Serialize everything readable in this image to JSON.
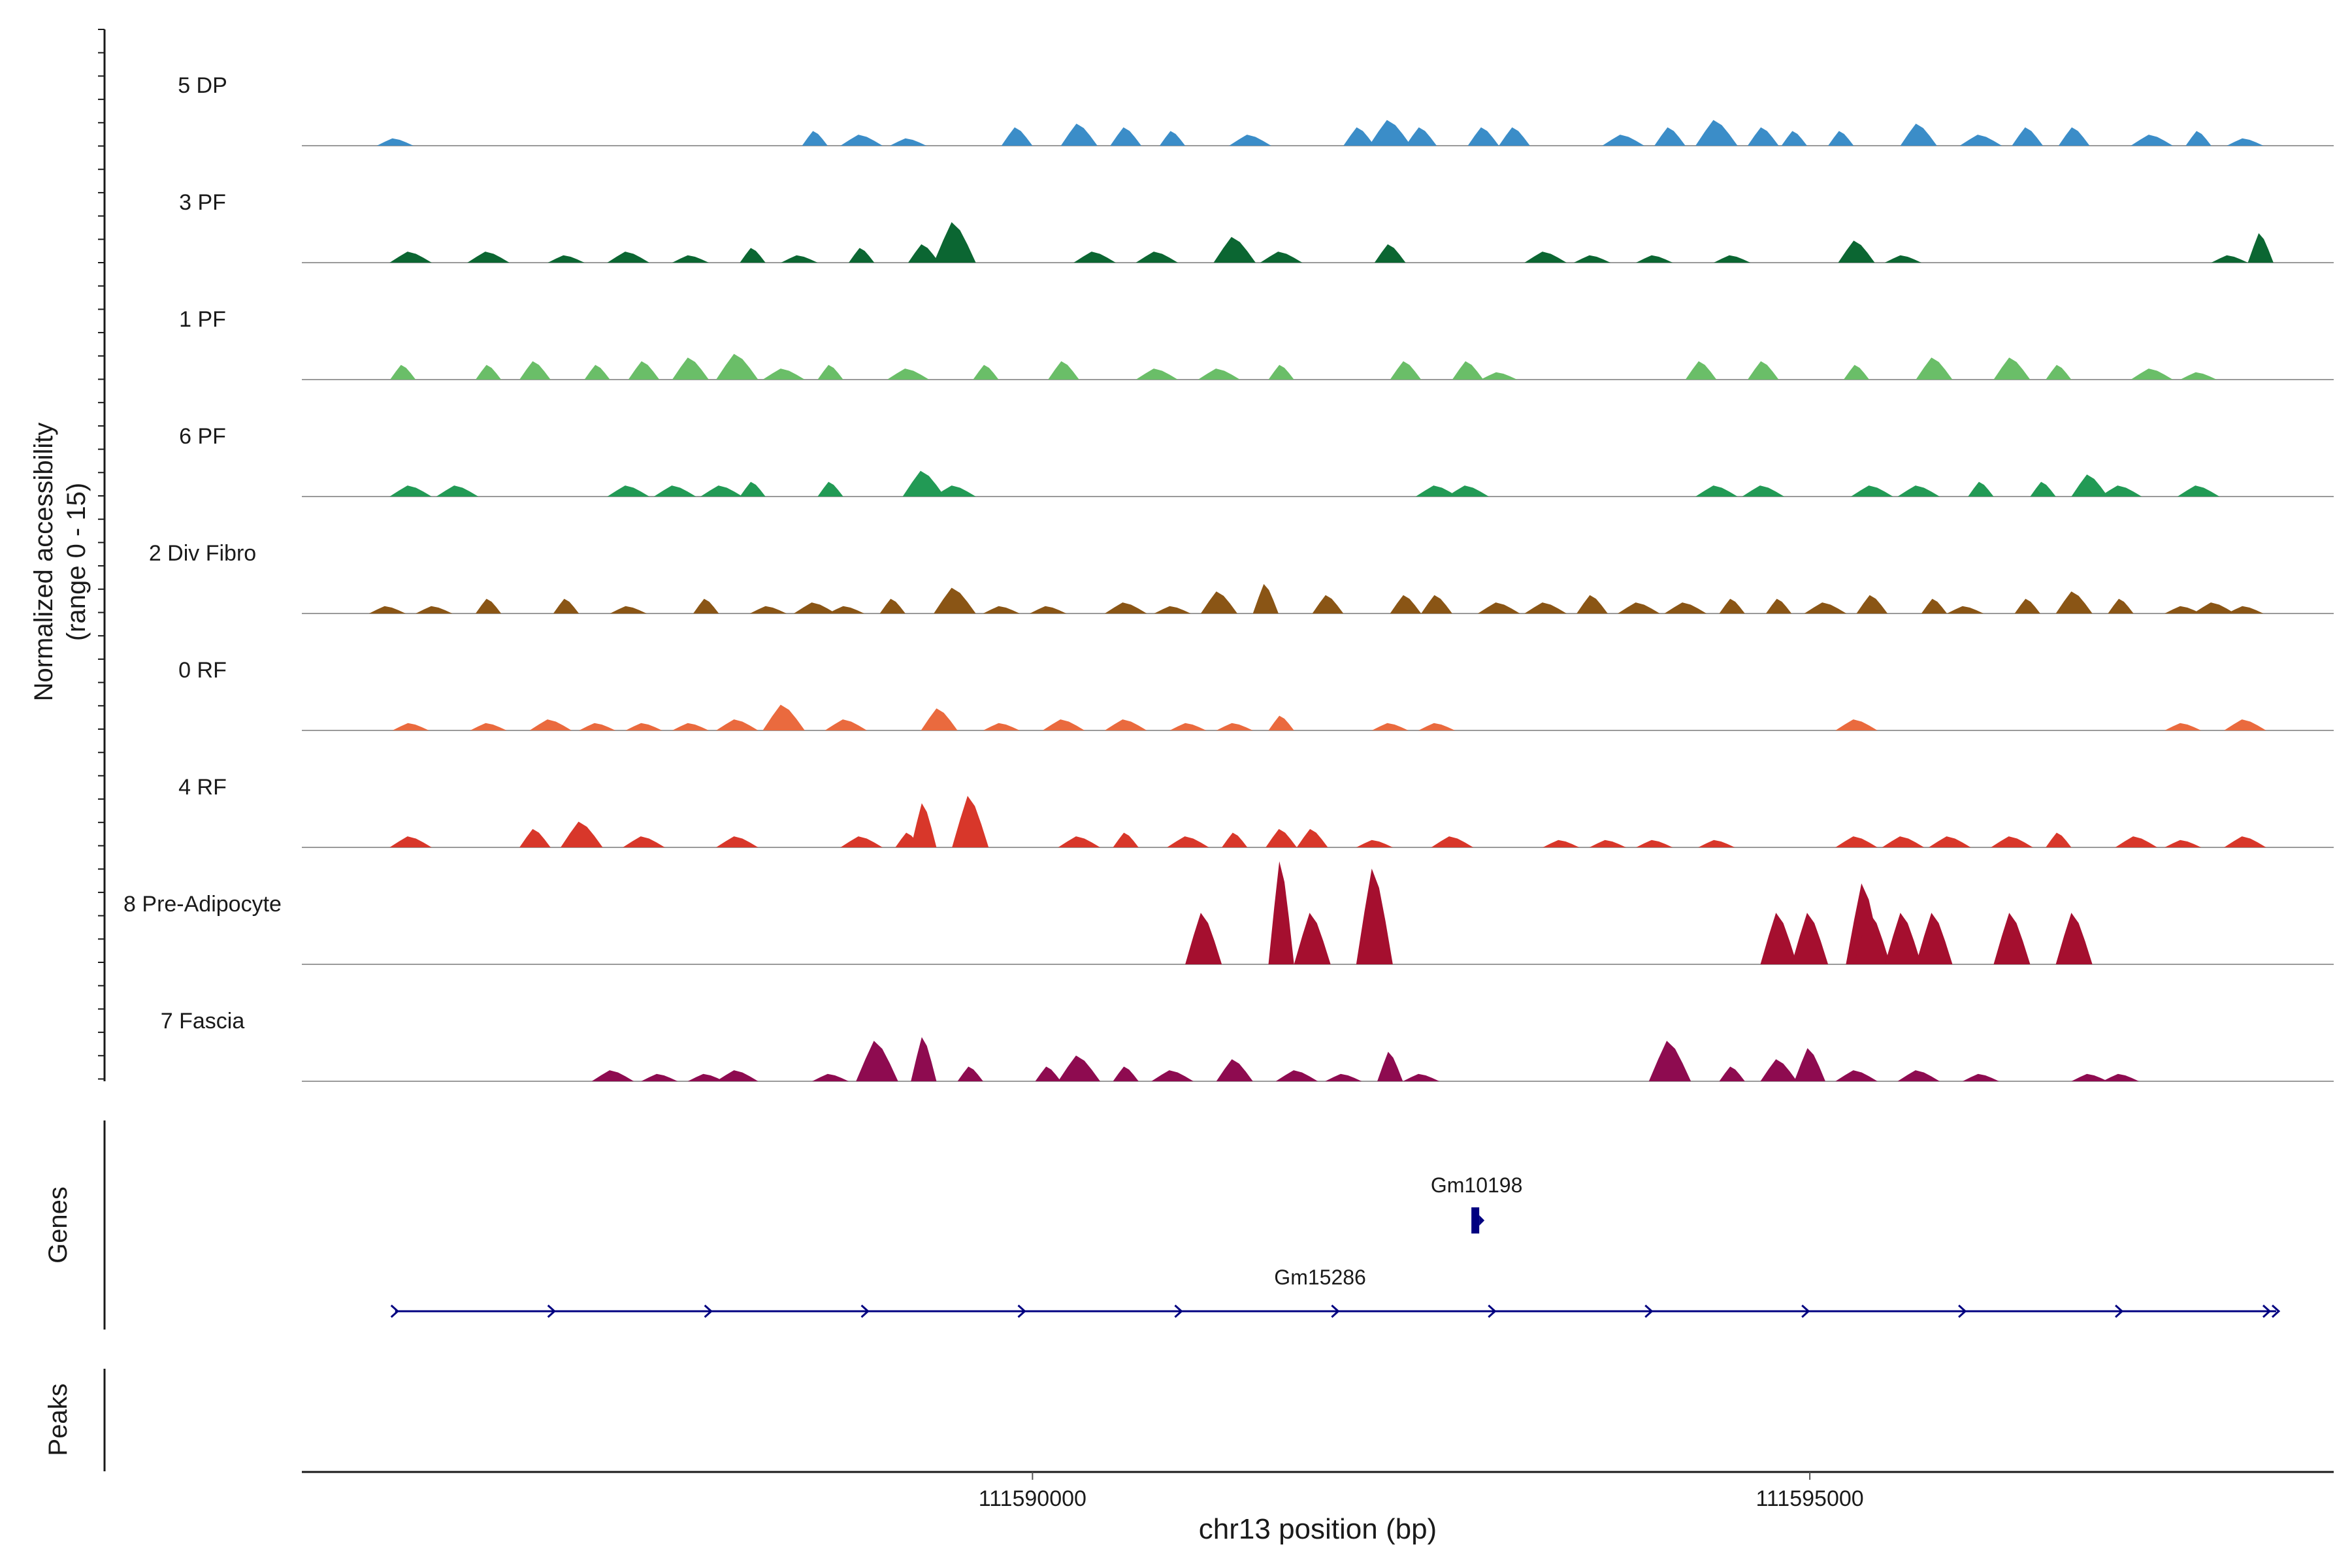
{
  "chart_data": {
    "type": "area",
    "title": "",
    "y_axis_label_line1": "Normalized accessibility",
    "y_axis_label_line2": "(range 0 - 15)",
    "xlabel": "chr13 position (bp)",
    "x_ticks": [
      111590000,
      111595000
    ],
    "x_tick_labels": [
      "111590000",
      "111595000"
    ],
    "xlim": [
      111585300,
      111598370
    ],
    "ylim": [
      0,
      15
    ],
    "series": [
      {
        "name": "5 DP",
        "color": "#3B8DC8",
        "points": [
          [
            111585900,
            1
          ],
          [
            111588600,
            2
          ],
          [
            111588900,
            1.5
          ],
          [
            111589200,
            1
          ],
          [
            111589900,
            2.5
          ],
          [
            111590300,
            3
          ],
          [
            111590600,
            2.5
          ],
          [
            111590900,
            2
          ],
          [
            111591400,
            1.5
          ],
          [
            111592100,
            2.5
          ],
          [
            111592300,
            3.5
          ],
          [
            111592500,
            2.5
          ],
          [
            111592900,
            2.5
          ],
          [
            111593100,
            2.5
          ],
          [
            111593800,
            1.5
          ],
          [
            111594100,
            2.5
          ],
          [
            111594400,
            3.5
          ],
          [
            111594700,
            2.5
          ],
          [
            111594900,
            2
          ],
          [
            111595200,
            2
          ],
          [
            111595700,
            3
          ],
          [
            111596100,
            1.5
          ],
          [
            111596400,
            2.5
          ],
          [
            111596700,
            2.5
          ],
          [
            111597200,
            1.5
          ],
          [
            111597500,
            2
          ],
          [
            111597800,
            1
          ]
        ]
      },
      {
        "name": "3 PF",
        "color": "#0B6632",
        "points": [
          [
            111586000,
            1.5
          ],
          [
            111586500,
            1.5
          ],
          [
            111587000,
            1
          ],
          [
            111587400,
            1.5
          ],
          [
            111587800,
            1
          ],
          [
            111588200,
            2
          ],
          [
            111588500,
            1
          ],
          [
            111588900,
            2
          ],
          [
            111589300,
            2.5
          ],
          [
            111589500,
            5.5
          ],
          [
            111590400,
            1.5
          ],
          [
            111590800,
            1.5
          ],
          [
            111591300,
            3.5
          ],
          [
            111591600,
            1.5
          ],
          [
            111592300,
            2.5
          ],
          [
            111593300,
            1.5
          ],
          [
            111593600,
            1
          ],
          [
            111594000,
            1
          ],
          [
            111594500,
            1
          ],
          [
            111595300,
            3
          ],
          [
            111595600,
            1
          ],
          [
            111597700,
            1
          ],
          [
            111597900,
            4
          ]
        ]
      },
      {
        "name": "1 PF",
        "color": "#6ABE68",
        "points": [
          [
            111585950,
            2
          ],
          [
            111586500,
            2
          ],
          [
            111586800,
            2.5
          ],
          [
            111587200,
            2
          ],
          [
            111587500,
            2.5
          ],
          [
            111587800,
            3
          ],
          [
            111588100,
            3.5
          ],
          [
            111588400,
            1.5
          ],
          [
            111588700,
            2
          ],
          [
            111589200,
            1.5
          ],
          [
            111589700,
            2
          ],
          [
            111590200,
            2.5
          ],
          [
            111590800,
            1.5
          ],
          [
            111591200,
            1.5
          ],
          [
            111591600,
            2
          ],
          [
            111592400,
            2.5
          ],
          [
            111592800,
            2.5
          ],
          [
            111593000,
            1
          ],
          [
            111594300,
            2.5
          ],
          [
            111594700,
            2.5
          ],
          [
            111595300,
            2
          ],
          [
            111595800,
            3
          ],
          [
            111596300,
            3
          ],
          [
            111596600,
            2
          ],
          [
            111597200,
            1.5
          ],
          [
            111597500,
            1
          ]
        ]
      },
      {
        "name": "6 PF",
        "color": "#229A55",
        "points": [
          [
            111586000,
            1.5
          ],
          [
            111586300,
            1.5
          ],
          [
            111587400,
            1.5
          ],
          [
            111587700,
            1.5
          ],
          [
            111588000,
            1.5
          ],
          [
            111588200,
            2
          ],
          [
            111588700,
            2
          ],
          [
            111589300,
            3.5
          ],
          [
            111589500,
            1.5
          ],
          [
            111592600,
            1.5
          ],
          [
            111592800,
            1.5
          ],
          [
            111594400,
            1.5
          ],
          [
            111594700,
            1.5
          ],
          [
            111595400,
            1.5
          ],
          [
            111595700,
            1.5
          ],
          [
            111596100,
            2
          ],
          [
            111596500,
            2
          ],
          [
            111596800,
            3
          ],
          [
            111597000,
            1.5
          ],
          [
            111597500,
            1.5
          ]
        ]
      },
      {
        "name": "2 Div Fibro",
        "color": "#8A5515",
        "points": [
          [
            111585850,
            1
          ],
          [
            111586150,
            1
          ],
          [
            111586500,
            2
          ],
          [
            111587000,
            2
          ],
          [
            111587400,
            1
          ],
          [
            111587900,
            2
          ],
          [
            111588300,
            1
          ],
          [
            111588600,
            1.5
          ],
          [
            111588800,
            1
          ],
          [
            111589100,
            2
          ],
          [
            111589500,
            3.5
          ],
          [
            111589800,
            1
          ],
          [
            111590100,
            1
          ],
          [
            111590600,
            1.5
          ],
          [
            111590900,
            1
          ],
          [
            111591200,
            3
          ],
          [
            111591500,
            4
          ],
          [
            111591900,
            2.5
          ],
          [
            111592400,
            2.5
          ],
          [
            111592600,
            2.5
          ],
          [
            111593000,
            1.5
          ],
          [
            111593300,
            1.5
          ],
          [
            111593600,
            2.5
          ],
          [
            111593900,
            1.5
          ],
          [
            111594200,
            1.5
          ],
          [
            111594500,
            2
          ],
          [
            111594800,
            2
          ],
          [
            111595100,
            1.5
          ],
          [
            111595400,
            2.5
          ],
          [
            111595800,
            2
          ],
          [
            111596000,
            1
          ],
          [
            111596400,
            2
          ],
          [
            111596700,
            3
          ],
          [
            111597000,
            2
          ],
          [
            111597400,
            1
          ],
          [
            111597600,
            1.5
          ],
          [
            111597800,
            1
          ]
        ]
      },
      {
        "name": "0 RF",
        "color": "#EA6A3E",
        "points": [
          [
            111586000,
            1
          ],
          [
            111586500,
            1
          ],
          [
            111586900,
            1.5
          ],
          [
            111587200,
            1
          ],
          [
            111587500,
            1
          ],
          [
            111587800,
            1
          ],
          [
            111588100,
            1.5
          ],
          [
            111588400,
            3.5
          ],
          [
            111588800,
            1.5
          ],
          [
            111589400,
            3
          ],
          [
            111589800,
            1
          ],
          [
            111590200,
            1.5
          ],
          [
            111590600,
            1.5
          ],
          [
            111591000,
            1
          ],
          [
            111591300,
            1
          ],
          [
            111591600,
            2
          ],
          [
            111592300,
            1
          ],
          [
            111592600,
            1
          ],
          [
            111595300,
            1.5
          ],
          [
            111597400,
            1
          ],
          [
            111597800,
            1.5
          ]
        ]
      },
      {
        "name": "4 RF",
        "color": "#D8372A",
        "points": [
          [
            111586000,
            1.5
          ],
          [
            111586800,
            2.5
          ],
          [
            111587100,
            3.5
          ],
          [
            111587500,
            1.5
          ],
          [
            111588100,
            1.5
          ],
          [
            111588900,
            1.5
          ],
          [
            111589200,
            2
          ],
          [
            111589300,
            6
          ],
          [
            111589600,
            7
          ],
          [
            111590300,
            1.5
          ],
          [
            111590600,
            2
          ],
          [
            111591000,
            1.5
          ],
          [
            111591300,
            2
          ],
          [
            111591600,
            2.5
          ],
          [
            111591800,
            2.5
          ],
          [
            111592200,
            1
          ],
          [
            111592700,
            1.5
          ],
          [
            111593400,
            1
          ],
          [
            111593700,
            1
          ],
          [
            111594000,
            1
          ],
          [
            111594400,
            1
          ],
          [
            111595300,
            1.5
          ],
          [
            111595600,
            1.5
          ],
          [
            111595900,
            1.5
          ],
          [
            111596300,
            1.5
          ],
          [
            111596600,
            2
          ],
          [
            111597100,
            1.5
          ],
          [
            111597400,
            1
          ],
          [
            111597800,
            1.5
          ]
        ]
      },
      {
        "name": "8 Pre-Adipocyte",
        "color": "#A50F2F",
        "points": [
          [
            111591100,
            7
          ],
          [
            111591600,
            14
          ],
          [
            111591800,
            7
          ],
          [
            111592200,
            13
          ],
          [
            111594800,
            7
          ],
          [
            111595000,
            7
          ],
          [
            111595350,
            11
          ],
          [
            111595400,
            7
          ],
          [
            111595600,
            7
          ],
          [
            111595800,
            7
          ],
          [
            111596300,
            7
          ],
          [
            111596700,
            7
          ]
        ]
      },
      {
        "name": "7 Fascia",
        "color": "#8E0B50",
        "points": [
          [
            111587300,
            1.5
          ],
          [
            111587600,
            1
          ],
          [
            111587900,
            1
          ],
          [
            111588100,
            1.5
          ],
          [
            111588700,
            1
          ],
          [
            111589000,
            5.5
          ],
          [
            111589300,
            6
          ],
          [
            111589600,
            2
          ],
          [
            111590100,
            2
          ],
          [
            111590300,
            3.5
          ],
          [
            111590600,
            2
          ],
          [
            111590900,
            1.5
          ],
          [
            111591300,
            3
          ],
          [
            111591700,
            1.5
          ],
          [
            111592000,
            1
          ],
          [
            111592300,
            4
          ],
          [
            111592500,
            1
          ],
          [
            111594100,
            5.5
          ],
          [
            111594500,
            2
          ],
          [
            111594800,
            3
          ],
          [
            111595000,
            4.5
          ],
          [
            111595300,
            1.5
          ],
          [
            111595700,
            1.5
          ],
          [
            111596100,
            1
          ],
          [
            111596800,
            1
          ],
          [
            111597000,
            1
          ]
        ]
      }
    ],
    "genes": [
      {
        "name": "Gm10198",
        "start": 111592840,
        "end": 111592900,
        "strand": "+",
        "color": "#000080"
      },
      {
        "name": "Gm15286",
        "start": 111585900,
        "end": 111598000,
        "strand": "+",
        "color": "#000080"
      }
    ],
    "side_tracks": [
      "Genes",
      "Peaks"
    ]
  }
}
